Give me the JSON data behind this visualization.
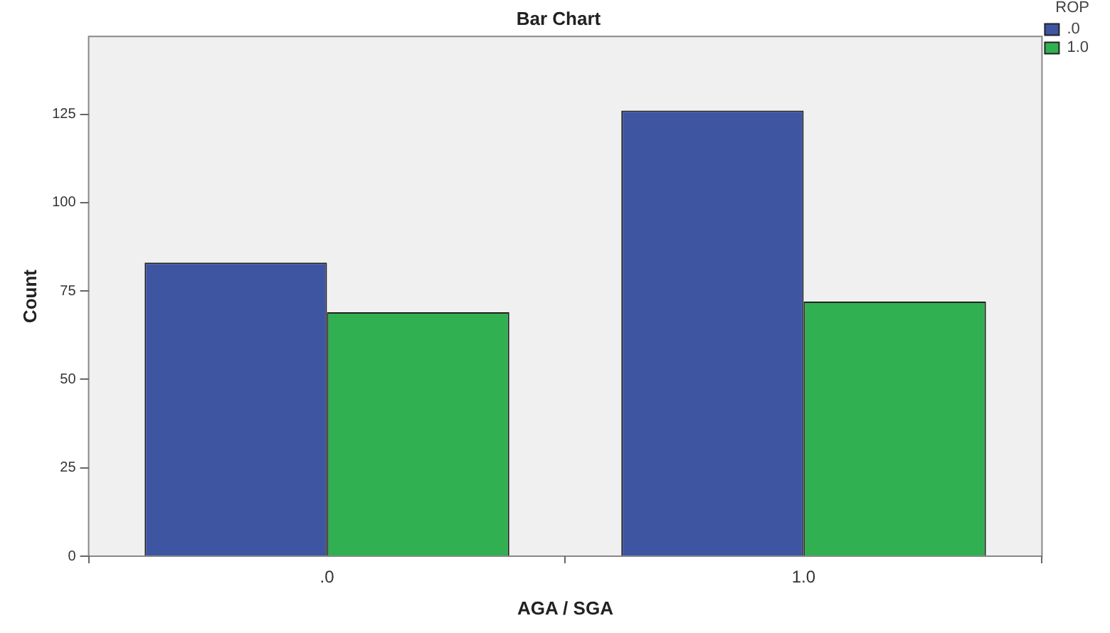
{
  "chart_data": {
    "type": "bar",
    "title": "Bar Chart",
    "xlabel": "AGA / SGA",
    "ylabel": "Count",
    "legend_title": "ROP",
    "categories": [
      ".0",
      "1.0"
    ],
    "series": [
      {
        "name": ".0",
        "color": "#3e55a2",
        "values": [
          83,
          126
        ]
      },
      {
        "name": "1.0",
        "color": "#30b050",
        "values": [
          69,
          72
        ]
      }
    ],
    "ylim": [
      0,
      147
    ],
    "yticks": [
      0,
      25,
      50,
      75,
      100,
      125
    ],
    "grid": false,
    "legend": "top right"
  }
}
